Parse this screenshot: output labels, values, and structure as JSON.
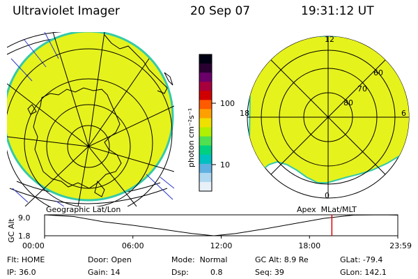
{
  "header": {
    "title": "Ultraviolet Imager",
    "date": "20 Sep 07",
    "time": "19:31:12 UT"
  },
  "colors": {
    "aurora_fill": "#e6f21c",
    "aurora_edge": "#35c9a8",
    "orbit_marker": "#e00000"
  },
  "left_panel": {
    "label": "Geographic Lat/Lon"
  },
  "right_panel": {
    "label": "Apex  MLat/MLT",
    "mlt_labels": [
      "12",
      "18",
      "6",
      "0"
    ],
    "mlat_labels": [
      "60",
      "70",
      "80"
    ]
  },
  "colorbar": {
    "unit_label": "photon cm⁻²s⁻¹",
    "tick_labels": [
      "100",
      "10"
    ],
    "scale": "log",
    "colors": [
      "#000014",
      "#2a0033",
      "#6b006b",
      "#a8003c",
      "#d00000",
      "#ff5a00",
      "#ffa000",
      "#f0e000",
      "#b0f000",
      "#50e050",
      "#00d080",
      "#00c0c0",
      "#60b0e0",
      "#b0d8f0",
      "#e8f0f8"
    ]
  },
  "chart_data": {
    "type": "line",
    "title": "",
    "ylabel": "GC Alt",
    "y_ticks": [
      "9.0",
      "1.8"
    ],
    "x_ticks": [
      "00:00",
      "06:00",
      "12:00",
      "18:00",
      "23:59"
    ],
    "x": [
      0,
      2,
      4,
      6,
      8,
      10,
      11.5,
      13,
      15,
      17,
      19,
      21,
      23,
      23.98
    ],
    "y": [
      9.0,
      8.4,
      6.6,
      5.4,
      4.0,
      2.6,
      1.8,
      2.6,
      4.2,
      6.0,
      7.8,
      8.9,
      9.0,
      8.9
    ],
    "xlim": [
      0,
      24
    ],
    "ylim": [
      1.8,
      9.0
    ],
    "current_time_marker": 19.52
  },
  "info": {
    "flt_label": "Flt: HOME",
    "ip_label": "IP: 36.0",
    "door_label": "Door: Open",
    "gain_label": "Gain: 14",
    "mode_label": "Mode:  Normal",
    "dsp_label": "Dsp:",
    "dsp_value": "0.8",
    "gcalt_label": "GC Alt: 8.9 Re",
    "seq_label": "Seq: 39",
    "glat_label": "GLat: -79.4",
    "glon_label": "GLon: 142.1"
  }
}
